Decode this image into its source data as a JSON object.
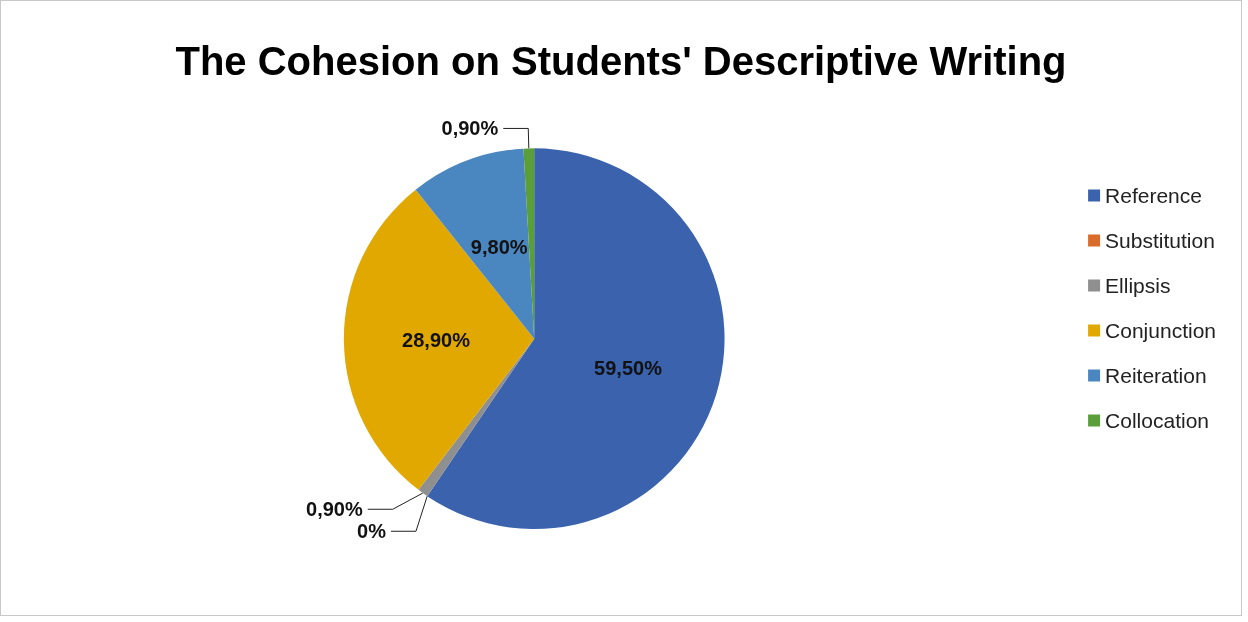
{
  "chart_data": {
    "type": "pie",
    "title": "The Cohesion on Students' Descriptive Writing",
    "categories": [
      "Reference",
      "Substitution",
      "Ellipsis",
      "Conjunction",
      "Reiteration",
      "Collocation"
    ],
    "values": [
      59.5,
      0,
      0.9,
      28.9,
      9.8,
      0.9
    ],
    "value_labels": [
      "59,50%",
      "0%",
      "0,90%",
      "28,90%",
      "9,80%",
      "0,90%"
    ],
    "colors": [
      "#3a62ad",
      "#d96c2a",
      "#8f8f8f",
      "#e0a800",
      "#4a86c0",
      "#5a9e3a"
    ],
    "legend": "right"
  }
}
